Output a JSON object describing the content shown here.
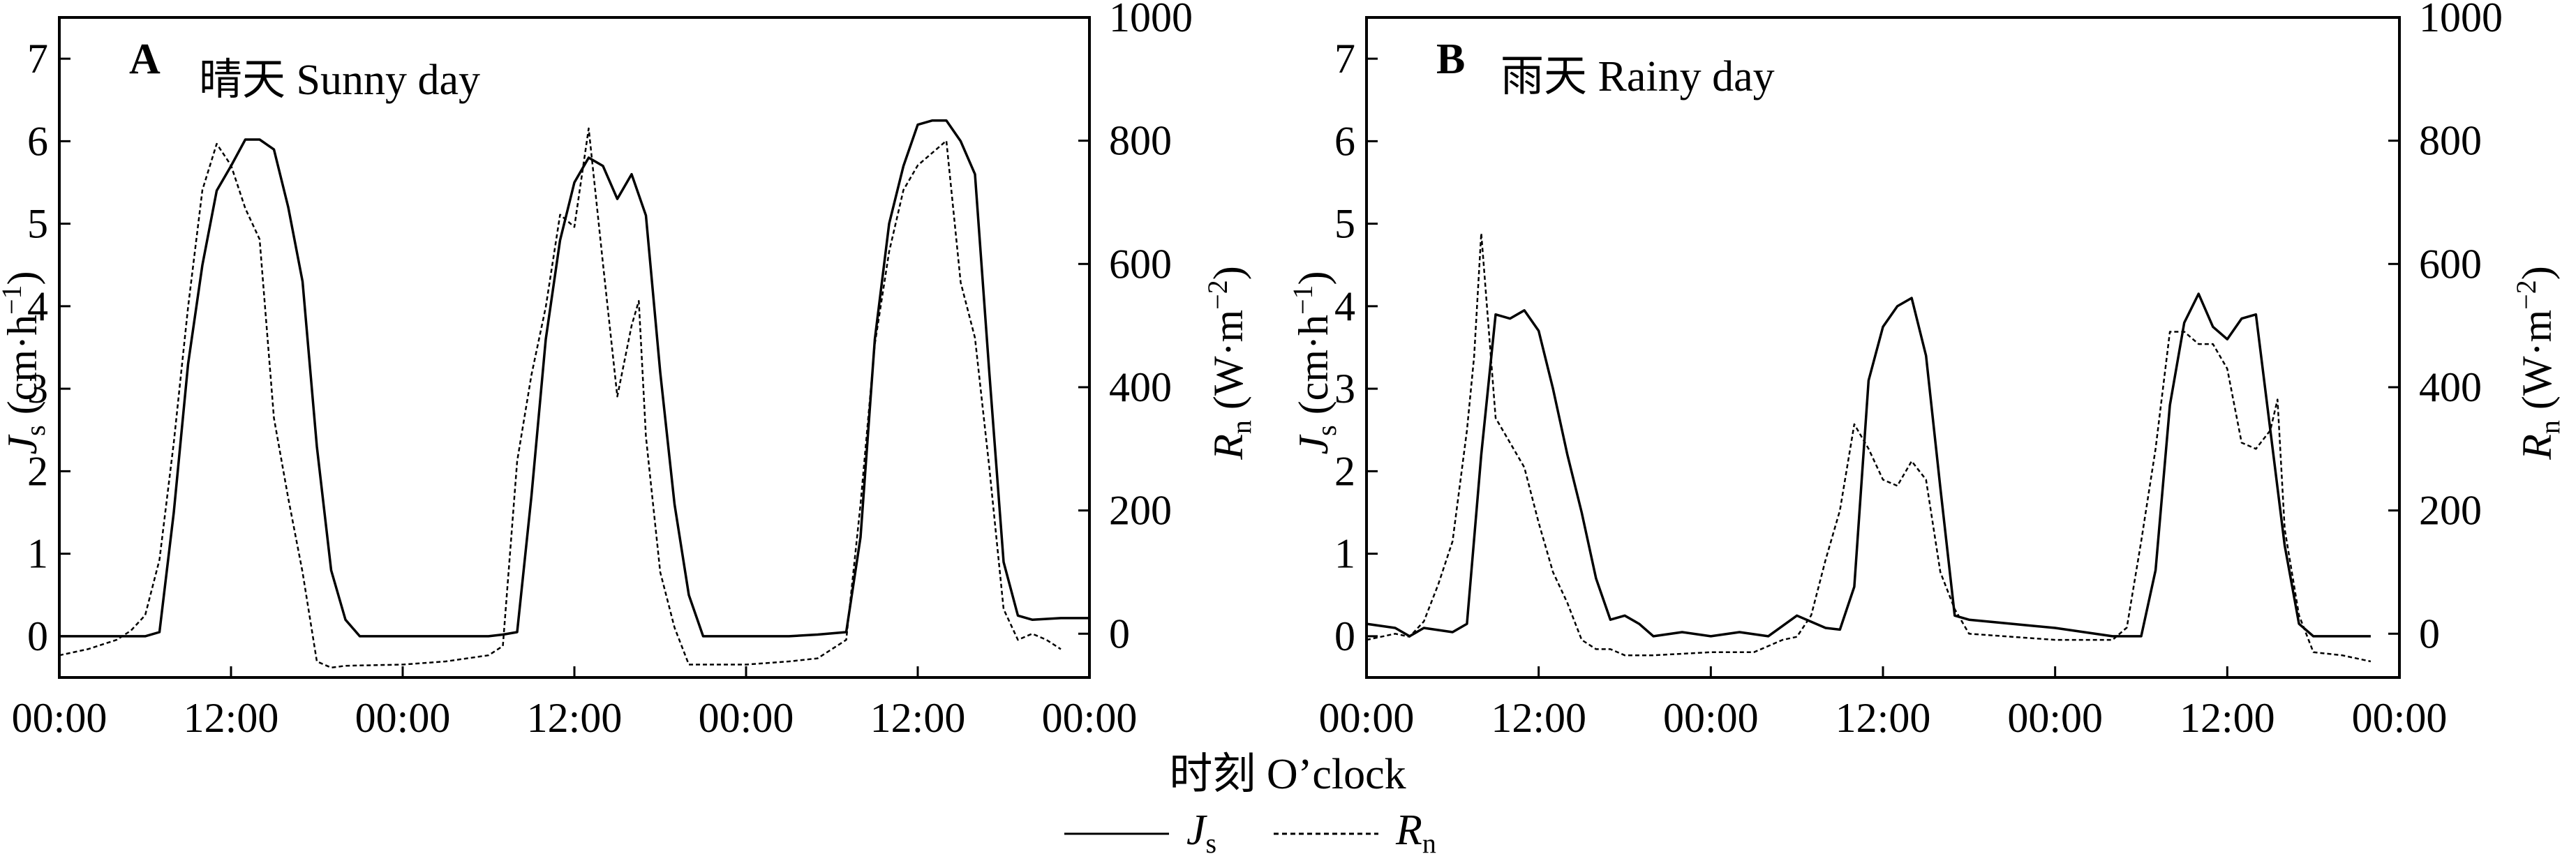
{
  "chart_data": [
    {
      "type": "line",
      "panel_letter": "A",
      "title": "晴天 Sunny day",
      "x_ticks": [
        "00:00",
        "12:00",
        "00:00",
        "12:00",
        "00:00",
        "12:00",
        "00:00"
      ],
      "xlim": [
        0,
        72
      ],
      "ylim_left": [
        -0.5,
        7.5
      ],
      "left_ticks": [
        "0",
        "1",
        "2",
        "3",
        "4",
        "5",
        "6",
        "7"
      ],
      "ylim_right": [
        -71,
        1000
      ],
      "right_ticks": [
        "0",
        "200",
        "400",
        "600",
        "800",
        "1000"
      ],
      "series": [
        {
          "name": "Js",
          "axis": "left",
          "style": "solid",
          "points": [
            [
              0,
              0
            ],
            [
              2,
              0
            ],
            [
              4,
              0
            ],
            [
              6,
              0
            ],
            [
              7,
              0.05
            ],
            [
              8,
              1.5
            ],
            [
              9,
              3.3
            ],
            [
              10,
              4.5
            ],
            [
              11,
              5.4
            ],
            [
              12,
              5.7
            ],
            [
              13,
              6.02
            ],
            [
              14,
              6.02
            ],
            [
              15,
              5.9
            ],
            [
              16,
              5.2
            ],
            [
              17,
              4.3
            ],
            [
              18,
              2.3
            ],
            [
              19,
              0.8
            ],
            [
              20,
              0.2
            ],
            [
              21,
              0
            ],
            [
              24,
              0
            ],
            [
              27,
              0
            ],
            [
              30,
              0
            ],
            [
              31,
              0.02
            ],
            [
              32,
              0.05
            ],
            [
              33,
              1.7
            ],
            [
              34,
              3.6
            ],
            [
              35,
              4.8
            ],
            [
              36,
              5.5
            ],
            [
              37,
              5.8
            ],
            [
              38,
              5.7
            ],
            [
              39,
              5.3
            ],
            [
              40,
              5.6
            ],
            [
              41,
              5.1
            ],
            [
              42,
              3.2
            ],
            [
              43,
              1.6
            ],
            [
              44,
              0.5
            ],
            [
              45,
              0
            ],
            [
              48,
              0
            ],
            [
              51,
              0
            ],
            [
              53,
              0.02
            ],
            [
              55,
              0.05
            ],
            [
              56,
              1.2
            ],
            [
              57,
              3.6
            ],
            [
              58,
              5.0
            ],
            [
              59,
              5.7
            ],
            [
              60,
              6.2
            ],
            [
              61,
              6.25
            ],
            [
              62,
              6.25
            ],
            [
              63,
              6.0
            ],
            [
              64,
              5.6
            ],
            [
              65,
              3.2
            ],
            [
              66,
              0.9
            ],
            [
              67,
              0.25
            ],
            [
              68,
              0.2
            ],
            [
              70,
              0.22
            ],
            [
              72,
              0.22
            ]
          ]
        },
        {
          "name": "Rn",
          "axis": "right",
          "style": "dashed",
          "points": [
            [
              0,
              -35
            ],
            [
              2,
              -25
            ],
            [
              4,
              -10
            ],
            [
              5,
              5
            ],
            [
              6,
              30
            ],
            [
              7,
              120
            ],
            [
              8,
              310
            ],
            [
              9,
              530
            ],
            [
              10,
              720
            ],
            [
              11,
              795
            ],
            [
              12,
              760
            ],
            [
              13,
              690
            ],
            [
              14,
              640
            ],
            [
              15,
              350
            ],
            [
              16,
              220
            ],
            [
              17,
              100
            ],
            [
              18,
              -45
            ],
            [
              19,
              -55
            ],
            [
              20,
              -52
            ],
            [
              24,
              -50
            ],
            [
              27,
              -45
            ],
            [
              30,
              -35
            ],
            [
              31,
              -20
            ],
            [
              32,
              280
            ],
            [
              33,
              420
            ],
            [
              34,
              530
            ],
            [
              35,
              680
            ],
            [
              36,
              660
            ],
            [
              37,
              820
            ],
            [
              38,
              600
            ],
            [
              39,
              385
            ],
            [
              40,
              500
            ],
            [
              40.5,
              540
            ],
            [
              41,
              320
            ],
            [
              42,
              100
            ],
            [
              43,
              10
            ],
            [
              44,
              -50
            ],
            [
              48,
              -50
            ],
            [
              51,
              -45
            ],
            [
              53,
              -40
            ],
            [
              55,
              -10
            ],
            [
              56,
              210
            ],
            [
              57,
              470
            ],
            [
              58,
              620
            ],
            [
              59,
              720
            ],
            [
              60,
              760
            ],
            [
              61,
              780
            ],
            [
              62,
              800
            ],
            [
              63,
              570
            ],
            [
              64,
              480
            ],
            [
              65,
              270
            ],
            [
              66,
              40
            ],
            [
              67,
              -10
            ],
            [
              68,
              0
            ],
            [
              69,
              -10
            ],
            [
              70,
              -25
            ]
          ]
        }
      ]
    },
    {
      "type": "line",
      "panel_letter": "B",
      "title": "雨天 Rainy day",
      "x_ticks": [
        "00:00",
        "12:00",
        "00:00",
        "12:00",
        "00:00",
        "12:00",
        "00:00"
      ],
      "xlim": [
        0,
        72
      ],
      "ylim_left": [
        -0.5,
        7.5
      ],
      "left_ticks": [
        "0",
        "1",
        "2",
        "3",
        "4",
        "5",
        "6",
        "7"
      ],
      "ylim_right": [
        -71,
        1000
      ],
      "right_ticks": [
        "0",
        "200",
        "400",
        "600",
        "800",
        "1000"
      ],
      "series": [
        {
          "name": "Js",
          "axis": "left",
          "style": "solid",
          "points": [
            [
              0,
              0.15
            ],
            [
              2,
              0.1
            ],
            [
              3,
              0
            ],
            [
              4,
              0.1
            ],
            [
              6,
              0.05
            ],
            [
              7,
              0.15
            ],
            [
              8,
              2.2
            ],
            [
              9,
              3.9
            ],
            [
              10,
              3.85
            ],
            [
              11,
              3.95
            ],
            [
              12,
              3.7
            ],
            [
              13,
              3.0
            ],
            [
              14,
              2.2
            ],
            [
              15,
              1.5
            ],
            [
              16,
              0.7
            ],
            [
              17,
              0.2
            ],
            [
              18,
              0.25
            ],
            [
              19,
              0.15
            ],
            [
              20,
              0
            ],
            [
              22,
              0.05
            ],
            [
              24,
              0
            ],
            [
              26,
              0.05
            ],
            [
              28,
              0
            ],
            [
              30,
              0.25
            ],
            [
              32,
              0.1
            ],
            [
              33,
              0.08
            ],
            [
              34,
              0.6
            ],
            [
              35,
              3.1
            ],
            [
              36,
              3.75
            ],
            [
              37,
              4.0
            ],
            [
              38,
              4.1
            ],
            [
              39,
              3.4
            ],
            [
              40,
              1.8
            ],
            [
              41,
              0.25
            ],
            [
              42,
              0.2
            ],
            [
              48,
              0.1
            ],
            [
              52,
              0
            ],
            [
              54,
              0
            ],
            [
              55,
              0.8
            ],
            [
              56,
              2.8
            ],
            [
              57,
              3.8
            ],
            [
              58,
              4.15
            ],
            [
              59,
              3.75
            ],
            [
              60,
              3.6
            ],
            [
              61,
              3.85
            ],
            [
              62,
              3.9
            ],
            [
              63,
              2.5
            ],
            [
              64,
              1.1
            ],
            [
              65,
              0.15
            ],
            [
              66,
              0
            ],
            [
              69,
              0
            ],
            [
              70,
              0
            ]
          ]
        },
        {
          "name": "Rn",
          "axis": "right",
          "style": "dashed",
          "points": [
            [
              0,
              -10
            ],
            [
              1,
              -5
            ],
            [
              2,
              0
            ],
            [
              3,
              -5
            ],
            [
              4,
              20
            ],
            [
              5,
              80
            ],
            [
              6,
              150
            ],
            [
              7,
              330
            ],
            [
              7.5,
              450
            ],
            [
              8,
              650
            ],
            [
              8.5,
              500
            ],
            [
              9,
              350
            ],
            [
              10,
              310
            ],
            [
              11,
              270
            ],
            [
              12,
              180
            ],
            [
              13,
              100
            ],
            [
              14,
              50
            ],
            [
              15,
              -10
            ],
            [
              16,
              -25
            ],
            [
              17,
              -25
            ],
            [
              18,
              -35
            ],
            [
              20,
              -35
            ],
            [
              24,
              -30
            ],
            [
              27,
              -30
            ],
            [
              28,
              -20
            ],
            [
              29,
              -10
            ],
            [
              30,
              -5
            ],
            [
              31,
              30
            ],
            [
              32,
              120
            ],
            [
              33,
              200
            ],
            [
              34,
              340
            ],
            [
              35,
              300
            ],
            [
              36,
              250
            ],
            [
              37,
              240
            ],
            [
              38,
              280
            ],
            [
              39,
              250
            ],
            [
              40,
              100
            ],
            [
              41,
              40
            ],
            [
              42,
              0
            ],
            [
              45,
              -5
            ],
            [
              48,
              -10
            ],
            [
              52,
              -10
            ],
            [
              53,
              10
            ],
            [
              54,
              150
            ],
            [
              55,
              300
            ],
            [
              56,
              490
            ],
            [
              57,
              490
            ],
            [
              58,
              470
            ],
            [
              59,
              470
            ],
            [
              60,
              430
            ],
            [
              61,
              310
            ],
            [
              62,
              300
            ],
            [
              63,
              330
            ],
            [
              63.5,
              380
            ],
            [
              64,
              170
            ],
            [
              65,
              30
            ],
            [
              66,
              -30
            ],
            [
              68,
              -35
            ],
            [
              70,
              -45
            ]
          ]
        }
      ]
    }
  ],
  "shared_xlabel": "时刻 O’clock",
  "axis_labels": {
    "left_main": "J",
    "left_sub": "s",
    "left_unit_pre": " (cm·h",
    "left_unit_sup": "−1",
    "left_unit_post": ")",
    "right_main": "R",
    "right_sub": "n",
    "right_unit_pre": " (W·m",
    "right_unit_sup": "−2",
    "right_unit_post": ")"
  },
  "legend": [
    {
      "main": "J",
      "sub": "s",
      "style": "solid"
    },
    {
      "main": "R",
      "sub": "n",
      "style": "dashed"
    }
  ],
  "colors": {
    "line": "#000000",
    "axis": "#000000",
    "background": "#ffffff"
  }
}
